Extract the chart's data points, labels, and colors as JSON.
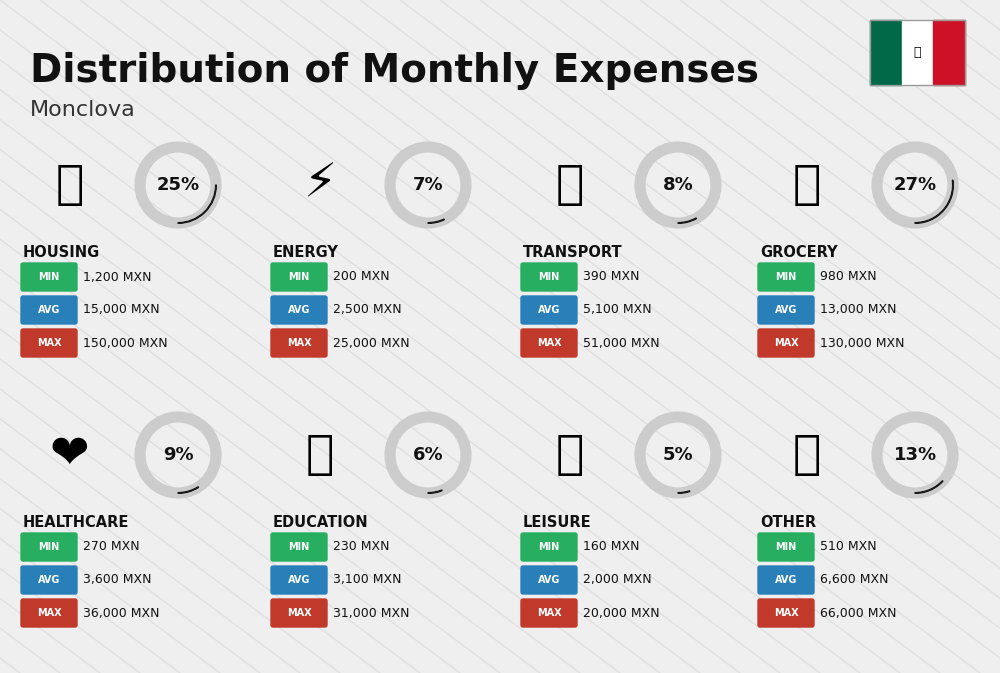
{
  "title": "Distribution of Monthly Expenses",
  "subtitle": "Monclova",
  "background_color": "#efefef",
  "title_fontsize": 28,
  "subtitle_fontsize": 16,
  "categories": [
    {
      "name": "HOUSING",
      "pct": 25,
      "min": "1,200 MXN",
      "avg": "15,000 MXN",
      "max": "150,000 MXN",
      "col": 0,
      "row": 0
    },
    {
      "name": "ENERGY",
      "pct": 7,
      "min": "200 MXN",
      "avg": "2,500 MXN",
      "max": "25,000 MXN",
      "col": 1,
      "row": 0
    },
    {
      "name": "TRANSPORT",
      "pct": 8,
      "min": "390 MXN",
      "avg": "5,100 MXN",
      "max": "51,000 MXN",
      "col": 2,
      "row": 0
    },
    {
      "name": "GROCERY",
      "pct": 27,
      "min": "980 MXN",
      "avg": "13,000 MXN",
      "max": "130,000 MXN",
      "col": 3,
      "row": 0
    },
    {
      "name": "HEALTHCARE",
      "pct": 9,
      "min": "270 MXN",
      "avg": "3,600 MXN",
      "max": "36,000 MXN",
      "col": 0,
      "row": 1
    },
    {
      "name": "EDUCATION",
      "pct": 6,
      "min": "230 MXN",
      "avg": "3,100 MXN",
      "max": "31,000 MXN",
      "col": 1,
      "row": 1
    },
    {
      "name": "LEISURE",
      "pct": 5,
      "min": "160 MXN",
      "avg": "2,000 MXN",
      "max": "20,000 MXN",
      "col": 2,
      "row": 1
    },
    {
      "name": "OTHER",
      "pct": 13,
      "min": "510 MXN",
      "avg": "6,600 MXN",
      "max": "66,000 MXN",
      "col": 3,
      "row": 1
    }
  ],
  "color_min_bg": "#27ae60",
  "color_avg_bg": "#2980b9",
  "color_max_bg": "#c0392b",
  "ring_color_filled": "#1a1a1a",
  "ring_color_empty": "#cccccc",
  "flag_green": "#006847",
  "flag_white": "#ffffff",
  "flag_red": "#ce1126",
  "diag_line_color": "#d5d5d5"
}
